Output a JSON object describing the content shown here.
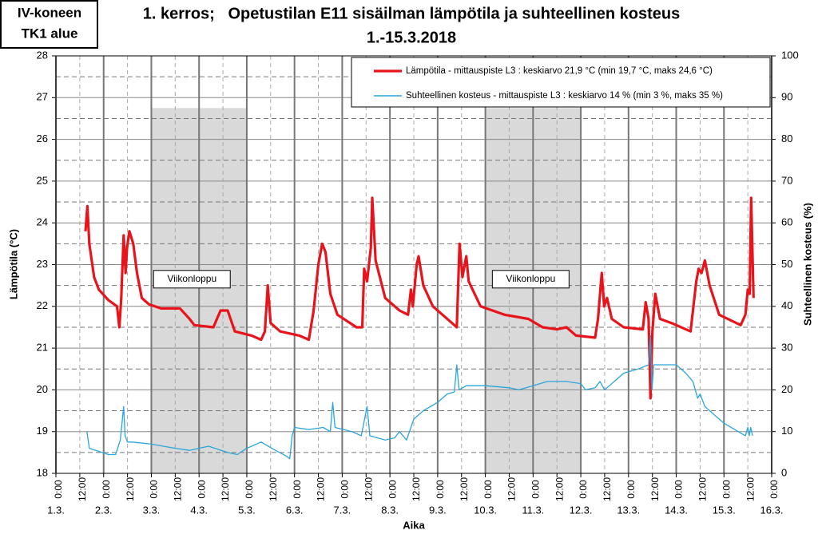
{
  "chart_data": {
    "type": "line",
    "title": "1. kerros;   Opetustilan E11 sisäilman lämpötila ja suhteellinen kosteus",
    "subtitle": "1.-15.3.2018",
    "corner_label": [
      "IV-koneen",
      "TK1 alue"
    ],
    "xlabel": "Aika",
    "ylabel": "Lämpötila (°C)",
    "y2label": "Suhteellinen kosteus (%)",
    "xlim": [
      0,
      15
    ],
    "ylim": [
      18,
      28
    ],
    "y2lim": [
      0,
      100
    ],
    "yticks": [
      18,
      19,
      20,
      21,
      22,
      23,
      24,
      25,
      26,
      27,
      28
    ],
    "y2ticks": [
      0,
      10,
      20,
      30,
      40,
      50,
      60,
      70,
      80,
      90,
      100
    ],
    "xticks": [
      {
        "value": 0,
        "label": "0:00"
      },
      {
        "value": 0.5,
        "label": "12:00"
      },
      {
        "value": 1,
        "label": "0:00"
      },
      {
        "value": 1.5,
        "label": "12:00"
      },
      {
        "value": 2,
        "label": "0:00"
      },
      {
        "value": 2.5,
        "label": "12:00"
      },
      {
        "value": 3,
        "label": "0:00"
      },
      {
        "value": 3.5,
        "label": "12:00"
      },
      {
        "value": 4,
        "label": "0:00"
      },
      {
        "value": 4.5,
        "label": "12:00"
      },
      {
        "value": 5,
        "label": "0:00"
      },
      {
        "value": 5.5,
        "label": "12:00"
      },
      {
        "value": 6,
        "label": "0:00"
      },
      {
        "value": 6.5,
        "label": "12:00"
      },
      {
        "value": 7,
        "label": "0:00"
      },
      {
        "value": 7.5,
        "label": "12:00"
      },
      {
        "value": 8,
        "label": "0:00"
      },
      {
        "value": 8.5,
        "label": "12:00"
      },
      {
        "value": 9,
        "label": "0:00"
      },
      {
        "value": 9.5,
        "label": "12:00"
      },
      {
        "value": 10,
        "label": "0:00"
      },
      {
        "value": 10.5,
        "label": "12:00"
      },
      {
        "value": 11,
        "label": "0:00"
      },
      {
        "value": 11.5,
        "label": "12:00"
      },
      {
        "value": 12,
        "label": "0:00"
      },
      {
        "value": 12.5,
        "label": "12:00"
      },
      {
        "value": 13,
        "label": "0:00"
      },
      {
        "value": 13.5,
        "label": "12:00"
      },
      {
        "value": 14,
        "label": "0:00"
      },
      {
        "value": 14.5,
        "label": "12:00"
      },
      {
        "value": 15,
        "label": "0:00"
      }
    ],
    "xdates": [
      {
        "value": 0,
        "label": "1.3."
      },
      {
        "value": 1,
        "label": "2.3."
      },
      {
        "value": 2,
        "label": "3.3."
      },
      {
        "value": 3,
        "label": "4.3."
      },
      {
        "value": 4,
        "label": "5.3."
      },
      {
        "value": 5,
        "label": "6.3."
      },
      {
        "value": 6,
        "label": "7.3."
      },
      {
        "value": 7,
        "label": "8.3."
      },
      {
        "value": 8,
        "label": "9.3."
      },
      {
        "value": 9,
        "label": "10.3."
      },
      {
        "value": 10,
        "label": "11.3."
      },
      {
        "value": 11,
        "label": "12.3."
      },
      {
        "value": 12,
        "label": "13.3."
      },
      {
        "value": 13,
        "label": "14.3."
      },
      {
        "value": 14,
        "label": "15.3."
      },
      {
        "value": 15,
        "label": "16.3."
      }
    ],
    "grid": true,
    "shaded_regions": [
      {
        "x": [
          2,
          4
        ],
        "top": 26.75
      },
      {
        "x": [
          9,
          11
        ],
        "top": 26.75
      }
    ],
    "annotations": [
      {
        "text": "Viikonloppu",
        "x": 2.85,
        "y": 22.65
      },
      {
        "text": "Viikonloppu",
        "x": 9.95,
        "y": 22.65
      }
    ],
    "legend": "top-right",
    "series": [
      {
        "name": "Lämpötila - mittauspiste L3 : keskiarvo 21,9 °C (min 19,7 °C, maks 24,6 °C)",
        "color": "#e8141b",
        "axis": "y",
        "x": [
          0.62,
          0.66,
          0.7,
          0.8,
          0.9,
          1.1,
          1.28,
          1.33,
          1.37,
          1.42,
          1.46,
          1.49,
          1.54,
          1.62,
          1.7,
          1.8,
          1.95,
          2.2,
          2.6,
          2.8,
          2.9,
          3.3,
          3.45,
          3.6,
          3.75,
          4.1,
          4.3,
          4.38,
          4.44,
          4.5,
          4.7,
          5.1,
          5.3,
          5.4,
          5.5,
          5.58,
          5.65,
          5.75,
          5.9,
          6.3,
          6.42,
          6.46,
          6.52,
          6.6,
          6.63,
          6.7,
          6.9,
          7.2,
          7.38,
          7.44,
          7.48,
          7.56,
          7.6,
          7.7,
          7.9,
          8.3,
          8.4,
          8.46,
          8.52,
          8.6,
          8.65,
          8.9,
          9.4,
          9.9,
          10.2,
          10.5,
          10.7,
          10.9,
          11.3,
          11.36,
          11.44,
          11.49,
          11.55,
          11.65,
          11.9,
          12.3,
          12.36,
          12.42,
          12.46,
          12.5,
          12.56,
          12.66,
          12.9,
          13.3,
          13.42,
          13.47,
          13.53,
          13.6,
          13.7,
          13.9,
          14.35,
          14.45,
          14.5,
          14.54,
          14.57,
          14.62
        ],
        "values": [
          23.8,
          24.4,
          23.5,
          22.7,
          22.4,
          22.15,
          22.0,
          21.5,
          22.2,
          23.7,
          22.8,
          23.4,
          23.8,
          23.5,
          22.8,
          22.2,
          22.05,
          21.95,
          21.95,
          21.7,
          21.55,
          21.5,
          21.9,
          21.9,
          21.4,
          21.3,
          21.2,
          21.4,
          22.5,
          21.6,
          21.4,
          21.3,
          21.2,
          21.9,
          23.0,
          23.5,
          23.3,
          22.3,
          21.8,
          21.5,
          21.5,
          22.9,
          22.6,
          23.4,
          24.6,
          23.1,
          22.2,
          21.9,
          21.8,
          22.4,
          22.0,
          23.0,
          23.2,
          22.5,
          22.0,
          21.6,
          21.5,
          23.5,
          22.7,
          23.2,
          22.6,
          22.0,
          21.8,
          21.7,
          21.5,
          21.45,
          21.5,
          21.3,
          21.25,
          21.7,
          22.8,
          22.0,
          22.2,
          21.7,
          21.5,
          21.45,
          22.1,
          21.7,
          19.8,
          21.4,
          22.3,
          21.7,
          21.6,
          21.4,
          22.6,
          22.9,
          22.8,
          23.1,
          22.5,
          21.8,
          21.55,
          21.8,
          22.4,
          22.3,
          24.6,
          22.2
        ]
      },
      {
        "name": "Suhteellinen kosteus - mittauspiste L3 : keskiarvo 14 % (min 3 %, maks 35 %)",
        "color": "#2aa5dc",
        "axis": "y2",
        "x": [
          0.65,
          0.7,
          1.1,
          1.25,
          1.35,
          1.42,
          1.45,
          1.5,
          1.6,
          2.0,
          2.5,
          2.8,
          3.2,
          3.6,
          3.8,
          4.0,
          4.3,
          4.6,
          4.85,
          4.9,
          4.95,
          5.0,
          5.3,
          5.6,
          5.75,
          5.8,
          5.85,
          6.2,
          6.4,
          6.52,
          6.58,
          6.9,
          7.1,
          7.2,
          7.35,
          7.5,
          7.7,
          8.0,
          8.2,
          8.35,
          8.4,
          8.45,
          8.6,
          9.0,
          9.5,
          9.7,
          10.0,
          10.3,
          10.7,
          11.0,
          11.1,
          11.3,
          11.4,
          11.5,
          11.7,
          11.9,
          12.2,
          12.42,
          12.46,
          12.49,
          12.53,
          12.7,
          13.0,
          13.2,
          13.35,
          13.45,
          13.5,
          13.6,
          13.8,
          14.0,
          14.3,
          14.45,
          14.5,
          14.53,
          14.56,
          14.6
        ],
        "values": [
          10,
          6,
          4.5,
          4.5,
          8,
          16,
          9,
          7.5,
          7.5,
          7,
          6,
          5.5,
          6.5,
          5,
          4.5,
          6,
          7.5,
          5.5,
          4,
          3.5,
          9,
          11,
          10.5,
          11,
          10,
          17,
          11,
          10,
          9,
          16,
          9,
          8,
          8.5,
          10,
          8,
          13,
          15,
          17,
          19,
          19.5,
          26,
          20,
          21,
          21,
          20.5,
          20,
          21,
          22,
          22,
          21.5,
          20,
          20.5,
          22,
          20,
          22,
          24,
          25,
          26,
          33,
          20,
          26,
          26,
          26,
          24,
          22,
          18,
          19,
          16,
          14,
          12,
          10,
          9,
          11,
          9,
          11,
          9
        ]
      }
    ]
  }
}
